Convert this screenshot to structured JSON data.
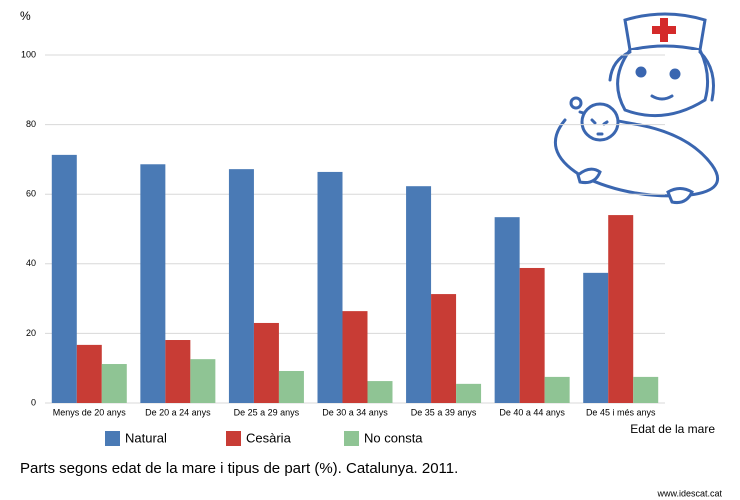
{
  "chart_data": {
    "type": "bar",
    "y_label": "%",
    "x_label": "Edat de la mare",
    "caption": "Parts segons edat de la mare i tipus de part (%). Catalunya. 2011.",
    "source": "www.idescat.cat",
    "categories": [
      "Menys de 20 anys",
      "De 20 a 24 anys",
      "De 25 a 29 anys",
      "De 30 a 34 anys",
      "De 35 a 39 anys",
      "De 40 a 44 anys",
      "De 45 i més anys"
    ],
    "series": [
      {
        "name": "Natural",
        "color": "#4a7ab5",
        "values": [
          71.3,
          68.6,
          67.2,
          66.4,
          62.3,
          53.4,
          37.4
        ]
      },
      {
        "name": "Cesària",
        "color": "#c83c35",
        "values": [
          16.7,
          18.1,
          23.0,
          26.4,
          31.3,
          38.8,
          54.0
        ]
      },
      {
        "name": "No consta",
        "color": "#8fc494",
        "values": [
          11.2,
          12.6,
          9.2,
          6.3,
          5.5,
          7.5,
          7.5
        ]
      }
    ],
    "ylim": [
      0,
      100
    ],
    "yticks": [
      0,
      20,
      40,
      60,
      80,
      100
    ],
    "grid": true
  }
}
